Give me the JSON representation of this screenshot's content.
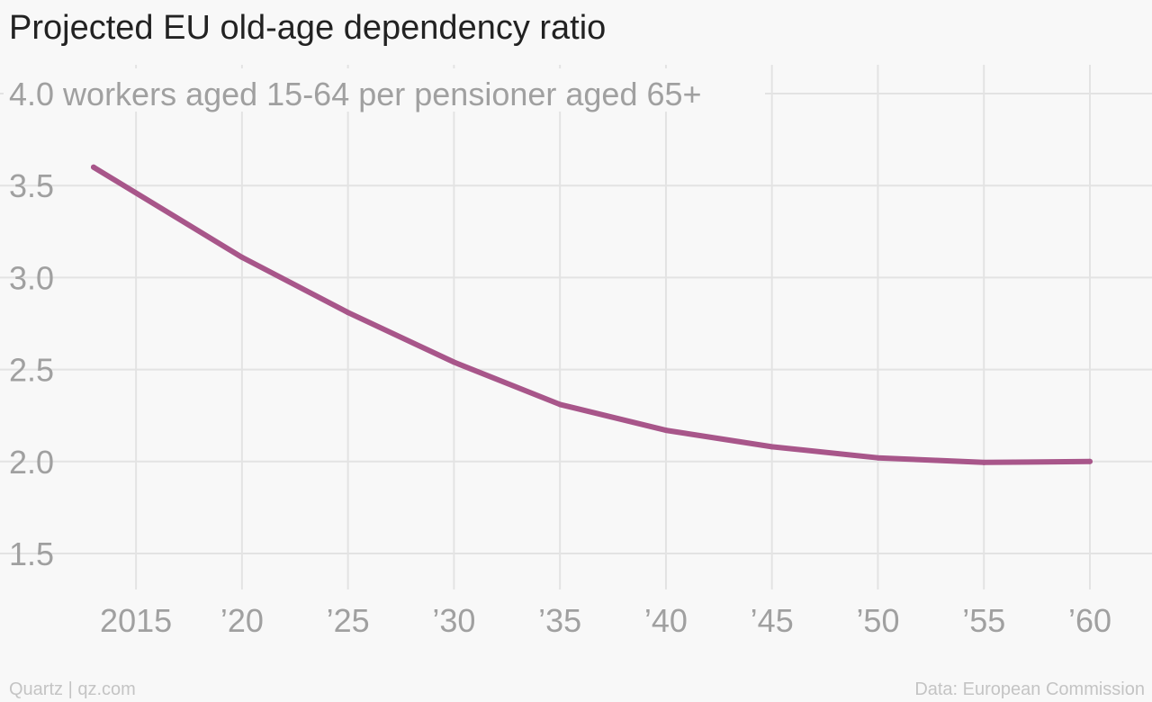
{
  "title": "Projected EU old-age dependency ratio",
  "colors": {
    "line": "#a8568a",
    "grid": "#e3e3e3",
    "tick": "#a0a0a0",
    "background": "#f8f8f8"
  },
  "footer": {
    "source_left": "Quartz | qz.com",
    "source_right": "Data: European Commission"
  },
  "chart_data": {
    "type": "line",
    "title": "Projected EU old-age dependency ratio",
    "ylabel": "workers aged 15-64 per pensioner aged 65+",
    "xlim": [
      2013,
      2062
    ],
    "ylim": [
      1.3,
      4.0
    ],
    "grid": true,
    "x_ticks": [
      2015,
      2020,
      2025,
      2030,
      2035,
      2040,
      2045,
      2050,
      2055,
      2060
    ],
    "x_tick_labels": [
      "2015",
      "’20",
      "’25",
      "’30",
      "’35",
      "’40",
      "’45",
      "’50",
      "’55",
      "’60"
    ],
    "y_ticks": [
      1.5,
      2.0,
      2.5,
      3.0,
      3.5,
      4.0
    ],
    "y_tick_labels": [
      "1.5",
      "2.0",
      "2.5",
      "3.0",
      "3.5",
      "4.0 workers aged 15-64 per pensioner aged 65+"
    ],
    "series": [
      {
        "x": [
          2013,
          2020,
          2025,
          2030,
          2035,
          2040,
          2045,
          2050,
          2055,
          2060
        ],
        "y": [
          3.6,
          3.11,
          2.81,
          2.54,
          2.31,
          2.17,
          2.08,
          2.02,
          1.995,
          2.0
        ]
      }
    ]
  }
}
